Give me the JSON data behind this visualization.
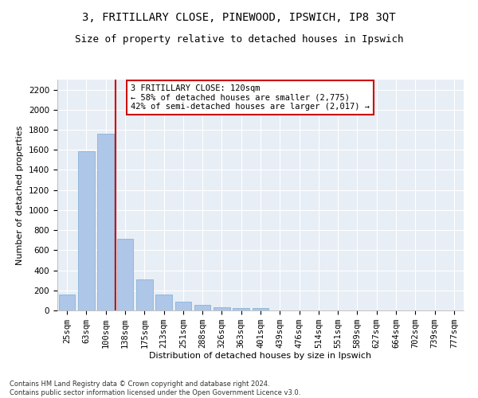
{
  "title": "3, FRITILLARY CLOSE, PINEWOOD, IPSWICH, IP8 3QT",
  "subtitle": "Size of property relative to detached houses in Ipswich",
  "xlabel": "Distribution of detached houses by size in Ipswich",
  "ylabel": "Number of detached properties",
  "categories": [
    "25sqm",
    "63sqm",
    "100sqm",
    "138sqm",
    "175sqm",
    "213sqm",
    "251sqm",
    "288sqm",
    "326sqm",
    "363sqm",
    "401sqm",
    "439sqm",
    "476sqm",
    "514sqm",
    "551sqm",
    "589sqm",
    "627sqm",
    "664sqm",
    "702sqm",
    "739sqm",
    "777sqm"
  ],
  "values": [
    160,
    1590,
    1760,
    710,
    310,
    160,
    90,
    55,
    35,
    25,
    20,
    0,
    0,
    0,
    0,
    0,
    0,
    0,
    0,
    0,
    0
  ],
  "bar_color": "#aec6e8",
  "bar_edge_color": "#7aadd4",
  "property_line_x": 2.5,
  "property_line_color": "#cc0000",
  "annotation_text": "3 FRITILLARY CLOSE: 120sqm\n← 58% of detached houses are smaller (2,775)\n42% of semi-detached houses are larger (2,017) →",
  "annotation_box_color": "#cc0000",
  "ylim": [
    0,
    2300
  ],
  "yticks": [
    0,
    200,
    400,
    600,
    800,
    1000,
    1200,
    1400,
    1600,
    1800,
    2000,
    2200
  ],
  "background_color": "#e8eef5",
  "grid_color": "#ffffff",
  "footer_line1": "Contains HM Land Registry data © Crown copyright and database right 2024.",
  "footer_line2": "Contains public sector information licensed under the Open Government Licence v3.0.",
  "title_fontsize": 10,
  "subtitle_fontsize": 9,
  "annotation_fontsize": 7.5,
  "axis_label_fontsize": 8,
  "tick_fontsize": 7.5
}
